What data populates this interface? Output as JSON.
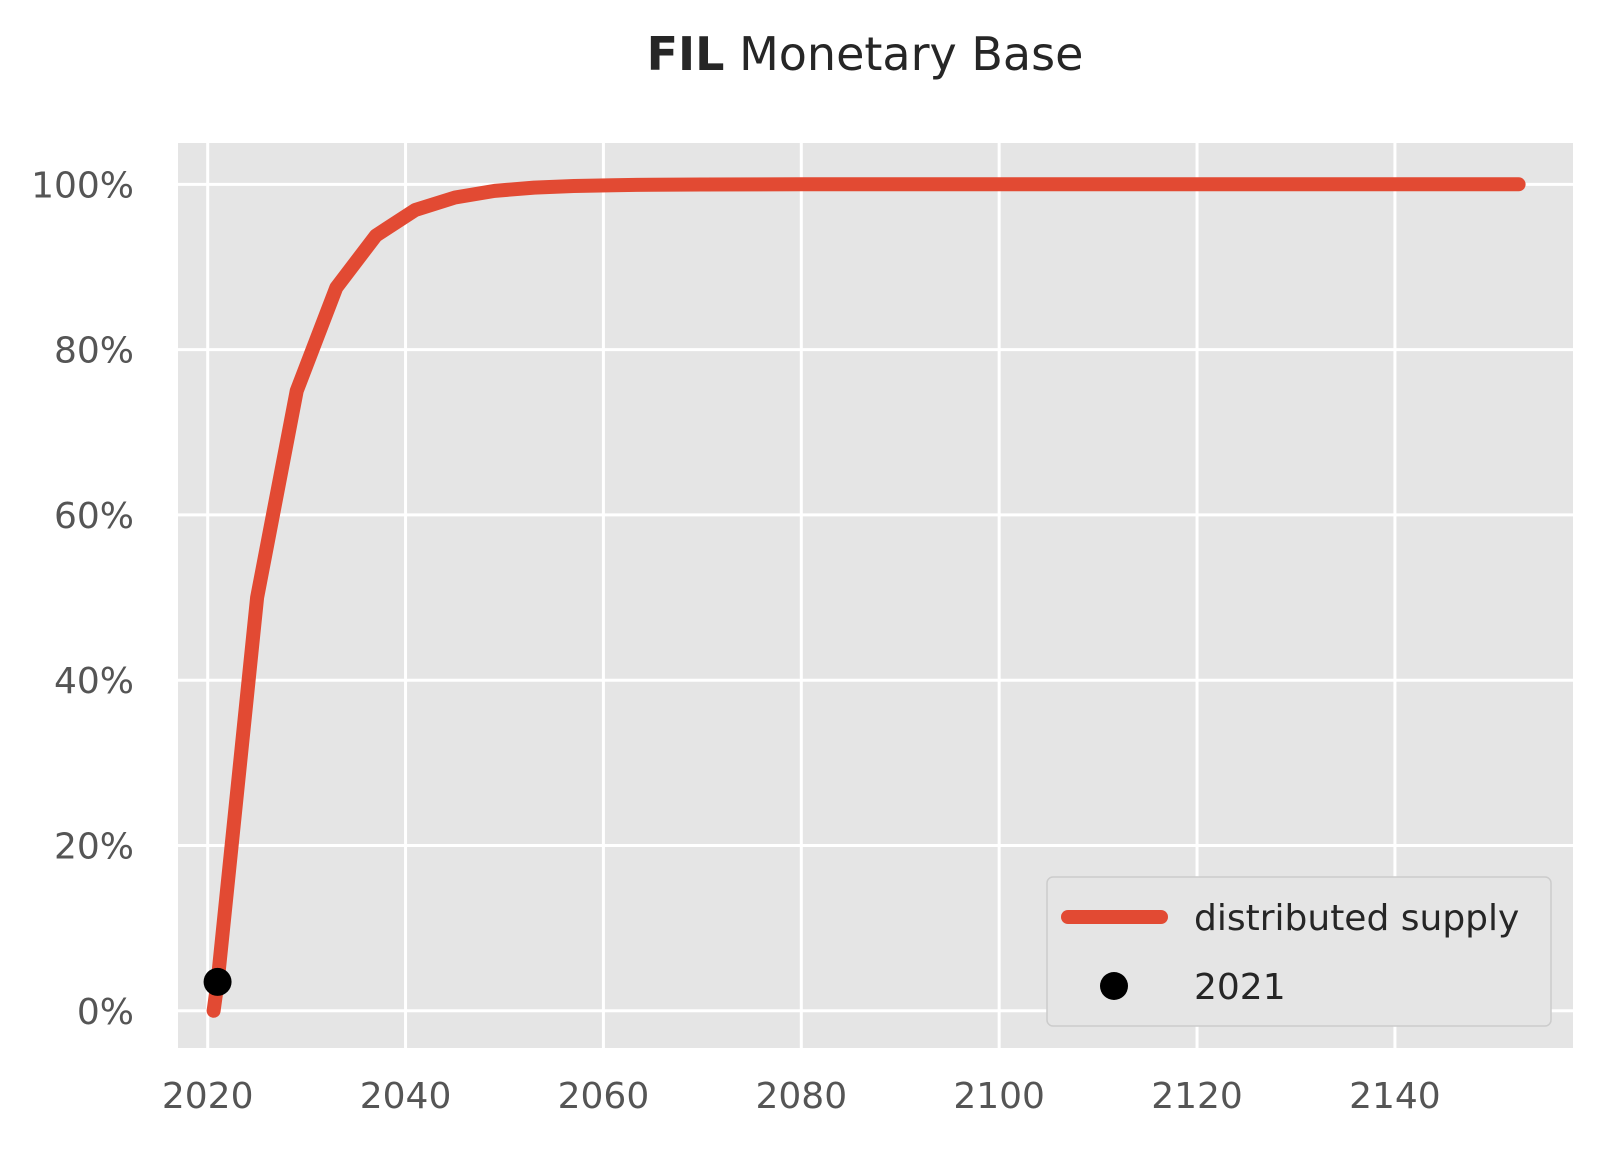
{
  "chart_data": {
    "type": "line",
    "title": {
      "bold": "FIL",
      "rest": " Monetary Base"
    },
    "xlabel": "",
    "ylabel": "",
    "xlim": [
      2017,
      2158
    ],
    "ylim": [
      -4.5,
      105
    ],
    "x_ticks": [
      2020,
      2040,
      2060,
      2080,
      2100,
      2120,
      2140
    ],
    "y_ticks": [
      0,
      20,
      40,
      60,
      80,
      100
    ],
    "y_tick_suffix": "%",
    "grid": true,
    "legend_position": "lower-right",
    "background_color": "#e5e5e5",
    "grid_color": "#ffffff",
    "series": [
      {
        "name": "distributed supply",
        "color": "#e24a33",
        "x": [
          2020.6,
          2021,
          2025,
          2029,
          2033,
          2037,
          2041,
          2045,
          2049,
          2053,
          2057,
          2061,
          2065,
          2070,
          2080,
          2100,
          2120,
          2140,
          2152.5
        ],
        "y": [
          0,
          3.5,
          50,
          75,
          87.5,
          93.8,
          96.9,
          98.4,
          99.2,
          99.6,
          99.8,
          99.9,
          99.95,
          99.98,
          100,
          100,
          100,
          100,
          100
        ]
      },
      {
        "name": "2021",
        "color": "#000000",
        "x": [
          2021
        ],
        "y": [
          3.5
        ]
      }
    ]
  }
}
